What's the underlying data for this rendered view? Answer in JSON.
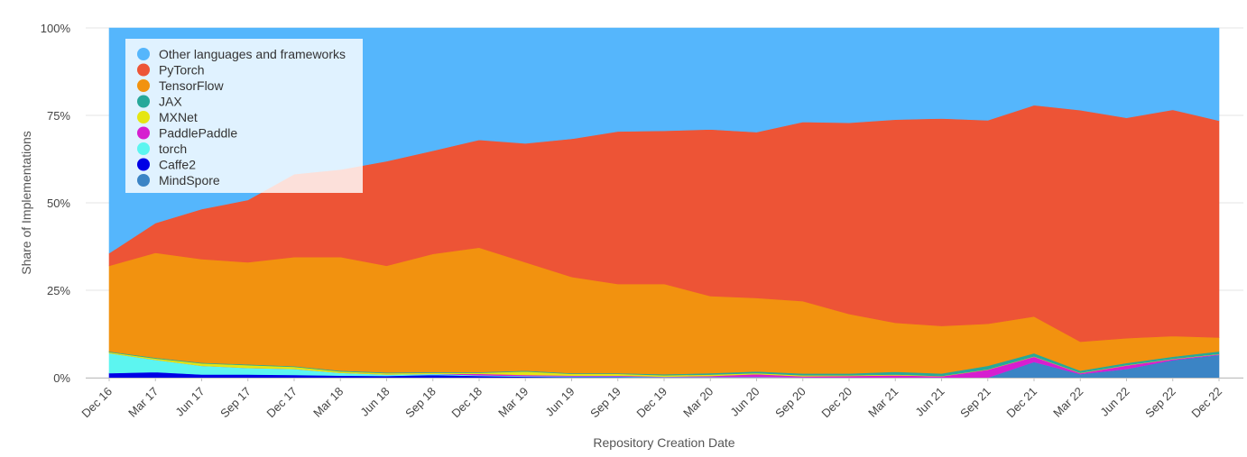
{
  "chart_data": {
    "type": "area",
    "stacked": true,
    "normalized": true,
    "xlabel": "Repository Creation Date",
    "ylabel": "Share of Implementations",
    "ylim": [
      0,
      100
    ],
    "yticks": [
      "0%",
      "25%",
      "50%",
      "75%",
      "100%"
    ],
    "grid": true,
    "legend_position": "top-left",
    "categories": [
      "Dec 16",
      "Mar 17",
      "Jun 17",
      "Sep 17",
      "Dec 17",
      "Mar 18",
      "Jun 18",
      "Sep 18",
      "Dec 18",
      "Mar 19",
      "Jun 19",
      "Sep 19",
      "Dec 19",
      "Mar 20",
      "Jun 20",
      "Sep 20",
      "Dec 20",
      "Mar 21",
      "Jun 21",
      "Sep 21",
      "Dec 21",
      "Mar 22",
      "Jun 22",
      "Sep 22",
      "Dec 22"
    ],
    "series": [
      {
        "name": "MindSpore",
        "color": "#3b84c5",
        "values": [
          0,
          0,
          0,
          0,
          0,
          0,
          0,
          0,
          0,
          0,
          0,
          0,
          0,
          0,
          0,
          0,
          0,
          0,
          0,
          0,
          4.5,
          1.0,
          2.5,
          5.0,
          6.5
        ]
      },
      {
        "name": "Caffe2",
        "color": "#0000e6",
        "values": [
          1.3,
          1.6,
          0.9,
          0.9,
          0.8,
          0.6,
          0.5,
          0.8,
          0.5,
          0.3,
          0.2,
          0.2,
          0.1,
          0.1,
          0.1,
          0,
          0,
          0,
          0,
          0,
          0,
          0,
          0,
          0,
          0
        ]
      },
      {
        "name": "torch",
        "color": "#5cf5f0",
        "values": [
          5.7,
          3.5,
          2.5,
          1.9,
          1.7,
          0.8,
          0.4,
          0.3,
          0.2,
          0.2,
          0.2,
          0.2,
          0.1,
          0.1,
          0.1,
          0.1,
          0,
          0,
          0,
          0,
          0,
          0,
          0,
          0,
          0
        ]
      },
      {
        "name": "PaddlePaddle",
        "color": "#d61ed0",
        "values": [
          0,
          0,
          0,
          0,
          0,
          0,
          0,
          0,
          0.4,
          0.3,
          0.2,
          0.2,
          0.1,
          0.3,
          0.8,
          0.3,
          0.5,
          0.7,
          0.4,
          2.3,
          1.5,
          0.3,
          1.0,
          0.3,
          0.2
        ]
      },
      {
        "name": "MXNet",
        "color": "#e5e612",
        "values": [
          0.3,
          0.4,
          0.7,
          0.8,
          0.6,
          0.4,
          0.4,
          0.3,
          0.3,
          1.0,
          0.5,
          0.5,
          0.4,
          0.4,
          0.3,
          0.3,
          0.2,
          0.2,
          0.1,
          0.1,
          0.1,
          0.1,
          0.1,
          0.1,
          0.1
        ]
      },
      {
        "name": "JAX",
        "color": "#27a89a",
        "values": [
          0.2,
          0.2,
          0.2,
          0.2,
          0.2,
          0.2,
          0.2,
          0.2,
          0.2,
          0.2,
          0.2,
          0.2,
          0.3,
          0.4,
          0.5,
          0.5,
          0.5,
          0.8,
          0.7,
          1.0,
          0.9,
          0.6,
          0.6,
          0.6,
          0.7
        ]
      },
      {
        "name": "TensorFlow",
        "color": "#f2920f",
        "values": [
          24.5,
          30.0,
          29.6,
          29.2,
          31.2,
          32.5,
          30.5,
          33.8,
          35.6,
          31.0,
          27.5,
          25.5,
          25.8,
          22.1,
          21.0,
          20.7,
          17.0,
          14.0,
          13.6,
          12.0,
          10.5,
          8.3,
          7.1,
          5.9,
          4.0
        ]
      },
      {
        "name": "PyTorch",
        "color": "#ed5436",
        "values": [
          3.6,
          8.5,
          14.3,
          17.8,
          23.7,
          25.0,
          29.9,
          29.5,
          30.8,
          34.0,
          39.5,
          43.6,
          43.8,
          47.8,
          47.4,
          51.2,
          54.7,
          58.1,
          59.3,
          58.2,
          60.4,
          66.2,
          63.0,
          64.7,
          62.0
        ]
      },
      {
        "name": "Other languages and frameworks",
        "color": "#55b6fc",
        "values": [
          64.4,
          55.8,
          51.8,
          49.2,
          41.8,
          40.5,
          38.1,
          35.1,
          32.0,
          33.0,
          31.7,
          29.6,
          29.4,
          29.1,
          29.8,
          26.9,
          27.1,
          26.2,
          25.9,
          26.4,
          22.1,
          23.5,
          25.7,
          23.4,
          26.5
        ]
      }
    ]
  },
  "legend": {
    "items": [
      {
        "label": "Other languages and frameworks",
        "color": "#55b6fc"
      },
      {
        "label": "PyTorch",
        "color": "#ed5436"
      },
      {
        "label": "TensorFlow",
        "color": "#f2920f"
      },
      {
        "label": "JAX",
        "color": "#27a89a"
      },
      {
        "label": "MXNet",
        "color": "#e5e612"
      },
      {
        "label": "PaddlePaddle",
        "color": "#d61ed0"
      },
      {
        "label": "torch",
        "color": "#5cf5f0"
      },
      {
        "label": "Caffe2",
        "color": "#0000e6"
      },
      {
        "label": "MindSpore",
        "color": "#3b84c5"
      }
    ]
  }
}
